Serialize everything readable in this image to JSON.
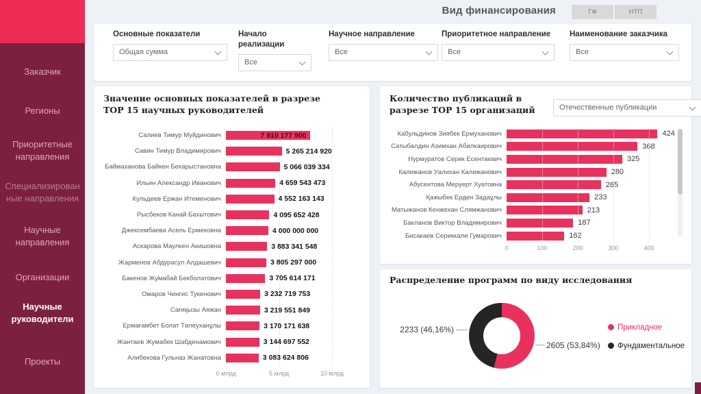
{
  "header": {
    "title": "Вид финансирования",
    "buttons": [
      "ГФ",
      "НТП"
    ]
  },
  "sidebar": {
    "items": [
      {
        "label": "Заказчик",
        "state": "normal"
      },
      {
        "label": "Регионы",
        "state": "normal"
      },
      {
        "label": "Приоритетные направления",
        "state": "normal"
      },
      {
        "label": "Специализированные направления",
        "state": "dim"
      },
      {
        "label": "Научные направления",
        "state": "normal"
      },
      {
        "label": "Организации",
        "state": "normal"
      },
      {
        "label": "Научные руководители",
        "state": "active"
      },
      {
        "label": "Проекты",
        "state": "normal"
      }
    ]
  },
  "filters": [
    {
      "label": "Основные показатели",
      "value": "Общая сумма"
    },
    {
      "label": "Начало реализации",
      "value": "Все"
    },
    {
      "label": "Научное направление",
      "value": "Все"
    },
    {
      "label": "Приоритетное направление",
      "value": "Все"
    },
    {
      "label": "Наименование заказчика",
      "value": "Все"
    }
  ],
  "colors": {
    "accent_pink": "#e8325e",
    "sidebar_maroon": "#7c2040",
    "sidebar_accent": "#ee2b55",
    "dark_slice": "#252525"
  },
  "chart_data": [
    {
      "type": "bar",
      "orientation": "horizontal",
      "title": "Значение основных показателей в разрезе ТОР 15 научных руководителей",
      "categories": [
        "Салиев Тимур Муйдинович",
        "Савин Тимур Владимирович",
        "Баймаханова Байкен Бекарыстановна",
        "Ильин Александр Иванович",
        "Кульдеев Ержан Итеменович",
        "Рысбеков Канай Бахытович",
        "Джексембаева Асель Ермековна",
        "Аскарова Маулкен Акишовна",
        "Жарменов Абдурасул Алдашевич",
        "Бакенов Жумабай Бекболатович",
        "Омаров Чингис Тукенович",
        "Сағиқызы Аяжан",
        "Ермағамбет Болат Төлеуханұлы",
        "Жантаев Жумабек Шабденамович",
        "Алибекова Гульназ Жанатовна"
      ],
      "values": [
        7910177900,
        5265214920,
        5066039334,
        4659543473,
        4552163143,
        4095652428,
        4000000000,
        3883341548,
        3805297000,
        3705614171,
        3232719753,
        3219551849,
        3170171638,
        3144697552,
        3083624806
      ],
      "value_labels": [
        "7 910 177 900",
        "5 265 214 920",
        "5 066 039 334",
        "4 659 543 473",
        "4 552 163 143",
        "4 095 652 428",
        "4 000 000 000",
        "3 883 341 548",
        "3 805 297 000",
        "3 705 614 171",
        "3 232 719 753",
        "3 219 551 849",
        "3 170 171 638",
        "3 144 697 552",
        "3 083 624 806"
      ],
      "x_ticks": [
        "0 млрд",
        "5 млрд",
        "10 млрд"
      ],
      "x_tick_values": [
        0,
        5000000000,
        10000000000
      ],
      "xlim": [
        0,
        10000000000
      ]
    },
    {
      "type": "bar",
      "orientation": "horizontal",
      "title": "Количество публикаций в разрезе ТОР 15 организаций",
      "dropdown_value": "Отечественные публикации",
      "categories": [
        "Кабульдинов Зиябек Ермуханович",
        "Сатыбалдин Азимхан Абилкаирович",
        "Нурмуратов Серик Есентаевич",
        "Калижанов Уалихан Калижанович",
        "Абусеитова Меруерт Хуатовна",
        "Қажыбек Ерден Задаұлы",
        "Матыжанов Кенжехан Слямжанович",
        "Бакланов Виктор Владимирович",
        "Бисакаев Сериккали Гумарович"
      ],
      "values": [
        424,
        368,
        325,
        280,
        265,
        233,
        213,
        187,
        162
      ],
      "value_labels": [
        "424",
        "368",
        "325",
        "280",
        "265",
        "233",
        "213",
        "187",
        "162"
      ],
      "x_ticks": [
        "0",
        "100",
        "200",
        "300",
        "400"
      ],
      "x_tick_values": [
        0,
        100,
        200,
        300,
        400
      ],
      "xlim": [
        0,
        430
      ],
      "scrollbar": true
    },
    {
      "type": "pie",
      "title": "Распределение программ по виду исследования",
      "slices": [
        {
          "name": "Прикладное",
          "value": 2605,
          "pct": 53.84,
          "label": "2605 (53,84%)",
          "color": "#e8325e"
        },
        {
          "name": "Фундаментальное",
          "value": 2233,
          "pct": 46.16,
          "label": "2233 (46,16%)",
          "color": "#252525"
        }
      ],
      "legend_position": "right"
    }
  ]
}
